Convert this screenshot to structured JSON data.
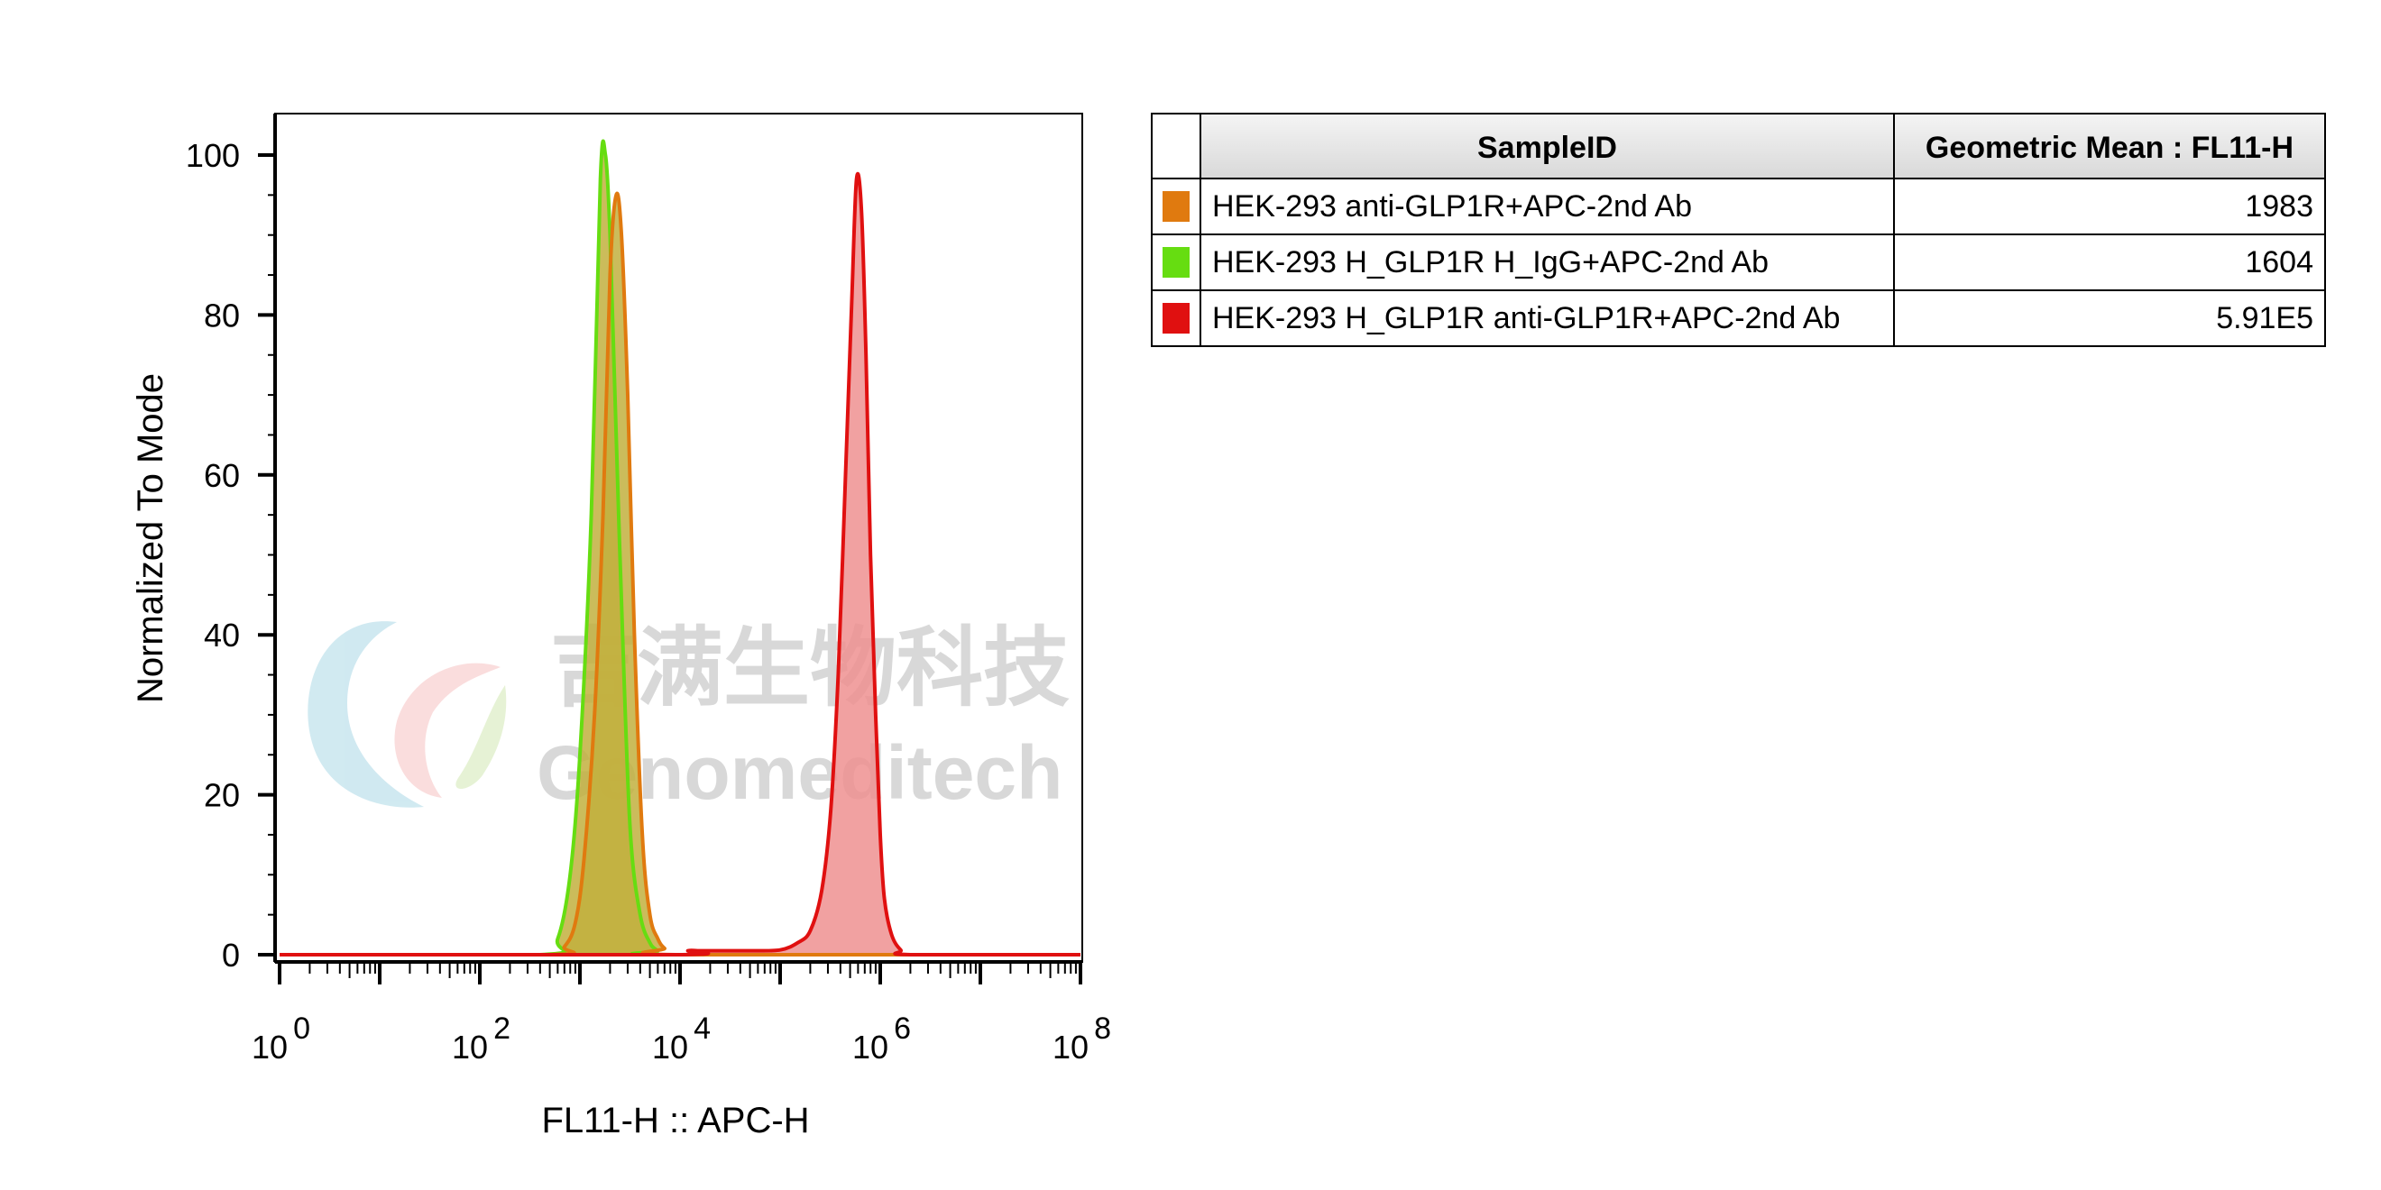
{
  "chart_data": {
    "type": "area",
    "xlabel": "FL11-H :: APC-H",
    "ylabel": "Normalized To Mode",
    "x_scale": "log10",
    "xlim": [
      1,
      100000000
    ],
    "ylim": [
      0,
      100
    ],
    "y_ticks": [
      "0",
      "20",
      "40",
      "60",
      "80",
      "100"
    ],
    "x_ticks": [
      {
        "base": "10",
        "exp": "0",
        "value": 1
      },
      {
        "base": "10",
        "exp": "2",
        "value": 100
      },
      {
        "base": "10",
        "exp": "4",
        "value": 10000
      },
      {
        "base": "10",
        "exp": "6",
        "value": 1000000
      },
      {
        "base": "10",
        "exp": "8",
        "value": 100000000
      }
    ],
    "series": [
      {
        "name": "HEK-293 H_GLP1R H_IgG+APC-2nd Ab",
        "color": "#66dd11",
        "fill": "#c2b03e",
        "x": [
          1,
          400,
          600,
          800,
          1000,
          1300,
          1600,
          1800,
          2000,
          2300,
          2700,
          3200,
          4000,
          5000,
          6000,
          7000,
          100000000
        ],
        "y": [
          0,
          0,
          2,
          10,
          25,
          55,
          97,
          100,
          90,
          65,
          38,
          15,
          5,
          1.5,
          0.5,
          0,
          0
        ]
      },
      {
        "name": "HEK-293 anti-GLP1R+APC-2nd Ab",
        "color": "#e07a0f",
        "fill": "#c2b03e",
        "x": [
          1,
          500,
          700,
          900,
          1100,
          1400,
          1700,
          2000,
          2300,
          2600,
          3000,
          3500,
          4200,
          5000,
          6000,
          7000,
          9000,
          100000000
        ],
        "y": [
          0,
          0,
          1,
          4,
          12,
          30,
          55,
          85,
          95,
          90,
          70,
          40,
          15,
          5,
          2,
          0.8,
          0,
          0
        ]
      },
      {
        "name": "HEK-293 H_GLP1R anti-GLP1R+APC-2nd Ab",
        "color": "#e01010",
        "fill": "#ee9090",
        "x": [
          1,
          9000,
          12000,
          15000,
          20000,
          50000,
          100000,
          150000,
          200000,
          260000,
          320000,
          380000,
          450000,
          520000,
          580000,
          650000,
          720000,
          800000,
          900000,
          1000000,
          1100000,
          1300000,
          1600000,
          2000000,
          100000000
        ],
        "y": [
          0,
          0,
          0.5,
          0.5,
          0.5,
          0.5,
          0.6,
          1.5,
          3,
          8,
          18,
          35,
          60,
          82,
          97,
          93,
          75,
          50,
          30,
          15,
          7,
          2.5,
          0.6,
          0,
          0
        ]
      }
    ]
  },
  "watermark": {
    "cn_text": "吉满生物科技",
    "en_text": "Genomeditech"
  },
  "legend_table": {
    "header_sample": "SampleID",
    "header_mean": "Geometric Mean : FL11-H",
    "rows": [
      {
        "color": "#e07a0f",
        "sample": "HEK-293 anti-GLP1R+APC-2nd Ab",
        "mean": "1983"
      },
      {
        "color": "#66dd11",
        "sample": "HEK-293 H_GLP1R H_IgG+APC-2nd Ab",
        "mean": "1604"
      },
      {
        "color": "#e01010",
        "sample": "HEK-293 H_GLP1R anti-GLP1R+APC-2nd Ab",
        "mean": "5.91E5"
      }
    ]
  }
}
